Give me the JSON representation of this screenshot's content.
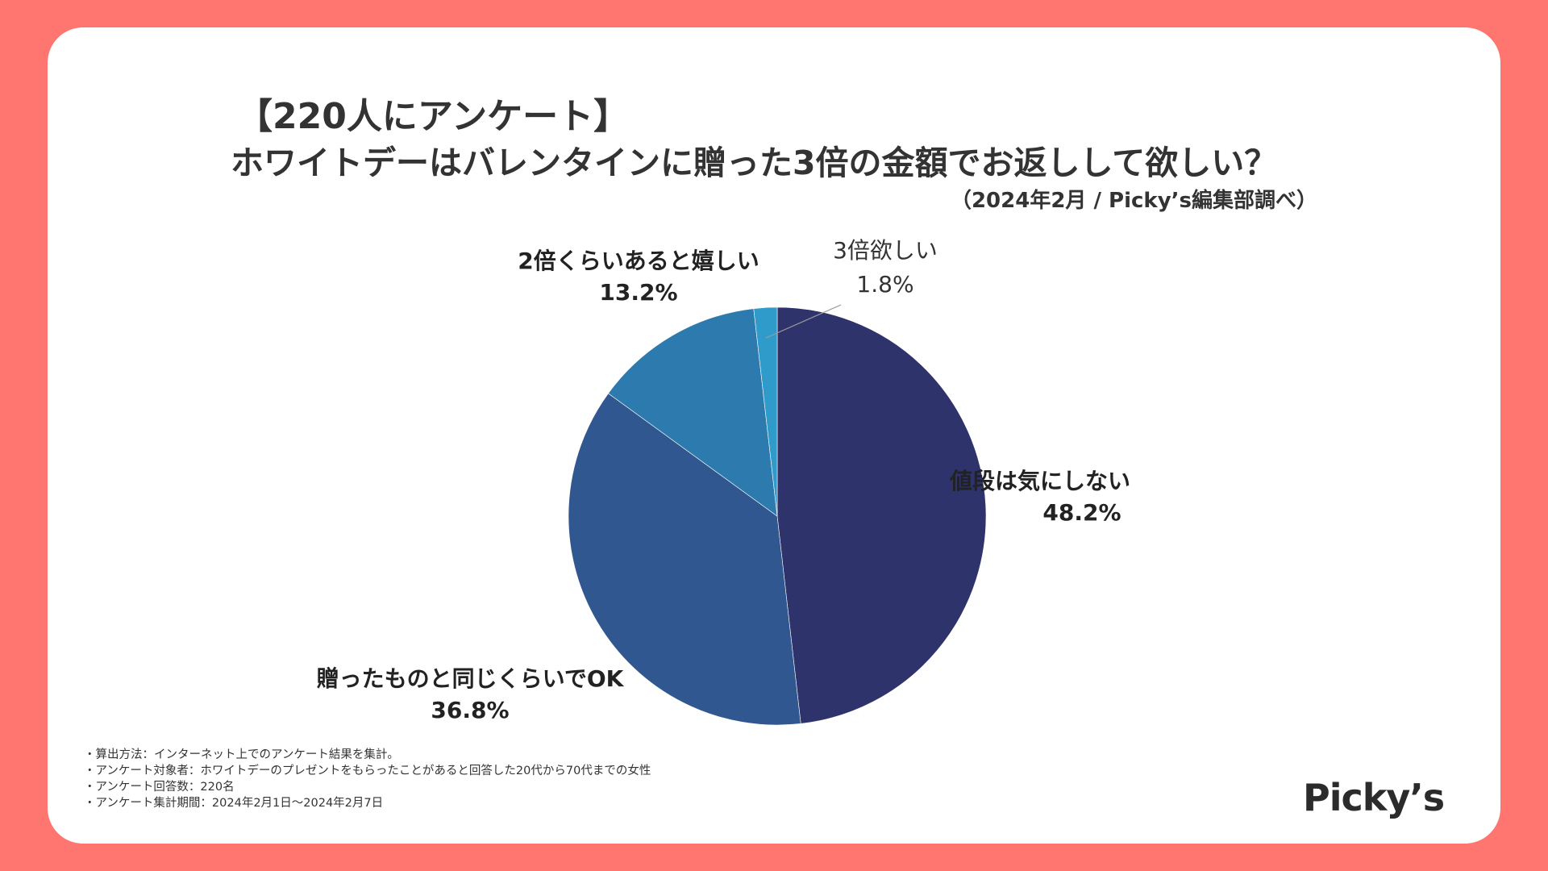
{
  "header": {
    "title_line1": "【220人にアンケート】",
    "title_line2": "ホワイトデーはバレンタインに贈った3倍の金額でお返しして欲しい？",
    "source": "（2024年2月 / Picky’s編集部調べ）"
  },
  "chart_data": {
    "type": "pie",
    "title": "ホワイトデーはバレンタインに贈った3倍の金額でお返しして欲しい？",
    "start_angle": "12 o'clock, clockwise",
    "slices": [
      {
        "label": "値段は気にしない",
        "value": 48.2,
        "value_label": "48.2%",
        "color": "#2F336B"
      },
      {
        "label": "贈ったものと同じくらいでOK",
        "value": 36.8,
        "value_label": "36.8%",
        "color": "#30578F"
      },
      {
        "label": "2倍くらいあると嬉しい",
        "value": 13.2,
        "value_label": "13.2%",
        "color": "#2D7AAE"
      },
      {
        "label": "3倍欲しい",
        "value": 1.8,
        "value_label": "1.8%",
        "color": "#2E9BCB"
      }
    ]
  },
  "notes": [
    "・算出方法：インターネット上でのアンケート結果を集計。",
    "・アンケート対象者：ホワイトデーのプレゼントをもらったことがあると回答した20代から70代までの女性",
    "・アンケート回答数：220名",
    "・アンケート集計期間：2024年2月1日〜2024年2月7日"
  ],
  "brand": {
    "logo_text": "Picky’s",
    "background": "#FF7570"
  }
}
